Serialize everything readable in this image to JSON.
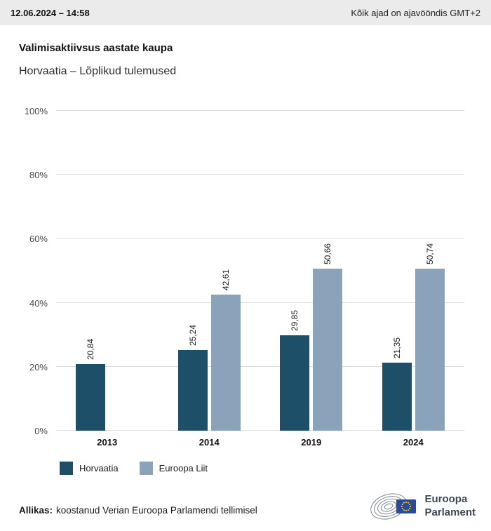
{
  "header": {
    "datetime": "12.06.2024 – 14:58",
    "timezone_note": "Kõik ajad on ajavööndis GMT+2"
  },
  "title": "Valimisaktiivsus aastate kaupa",
  "subtitle": "Horvaatia – Lõplikud tulemused",
  "chart_data": {
    "type": "bar",
    "title": "Valimisaktiivsus aastate kaupa",
    "subtitle": "Horvaatia – Lõplikud tulemused",
    "categories": [
      "2013",
      "2014",
      "2019",
      "2024"
    ],
    "series": [
      {
        "name": "Horvaatia",
        "color": "#1d4f68",
        "values": [
          20.84,
          25.24,
          29.85,
          21.35
        ],
        "labels": [
          "20,84",
          "25,24",
          "29,85",
          "21,35"
        ]
      },
      {
        "name": "Euroopa Liit",
        "color": "#8ba3ba",
        "values": [
          null,
          42.61,
          50.66,
          50.74
        ],
        "labels": [
          null,
          "42,61",
          "50,66",
          "50,74"
        ]
      }
    ],
    "y_ticks": [
      0,
      20,
      40,
      60,
      80,
      100
    ],
    "y_tick_labels": [
      "0%",
      "20%",
      "40%",
      "60%",
      "80%",
      "100%"
    ],
    "ylim": [
      0,
      100
    ],
    "grid": true,
    "legend_position": "bottom-left"
  },
  "legend": [
    {
      "label": "Horvaatia",
      "color": "#1d4f68"
    },
    {
      "label": "Euroopa Liit",
      "color": "#8ba3ba"
    }
  ],
  "footer": {
    "source_label": "Allikas:",
    "source_text": "koostanud Verian Euroopa Parlamendi tellimisel"
  },
  "logo": {
    "line1": "Euroopa",
    "line2": "Parlament"
  }
}
